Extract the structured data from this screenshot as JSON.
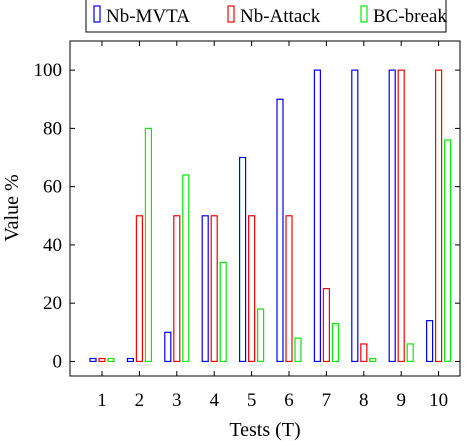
{
  "chart_data": {
    "type": "bar",
    "xlabel": "Tests (T)",
    "ylabel": "Value %",
    "categories": [
      "1",
      "2",
      "3",
      "4",
      "5",
      "6",
      "7",
      "8",
      "9",
      "10"
    ],
    "ylim": [
      -5,
      110
    ],
    "yticks": [
      "0",
      "20",
      "40",
      "60",
      "80",
      "100"
    ],
    "ytick_values": [
      0,
      20,
      40,
      60,
      80,
      100
    ],
    "grid": false,
    "legend_position": "top",
    "series": [
      {
        "name": "Nb-MVTA",
        "color": "#0000ff",
        "values": [
          1,
          1,
          10,
          50,
          70,
          90,
          100,
          100,
          100,
          14
        ]
      },
      {
        "name": "Nb-Attack",
        "color": "#ff0000",
        "values": [
          1,
          50,
          50,
          50,
          50,
          50,
          25,
          6,
          100,
          100
        ]
      },
      {
        "name": "BC-break",
        "color": "#00ee00",
        "values": [
          1,
          80,
          64,
          34,
          18,
          8,
          13,
          1,
          6,
          76
        ]
      }
    ]
  }
}
